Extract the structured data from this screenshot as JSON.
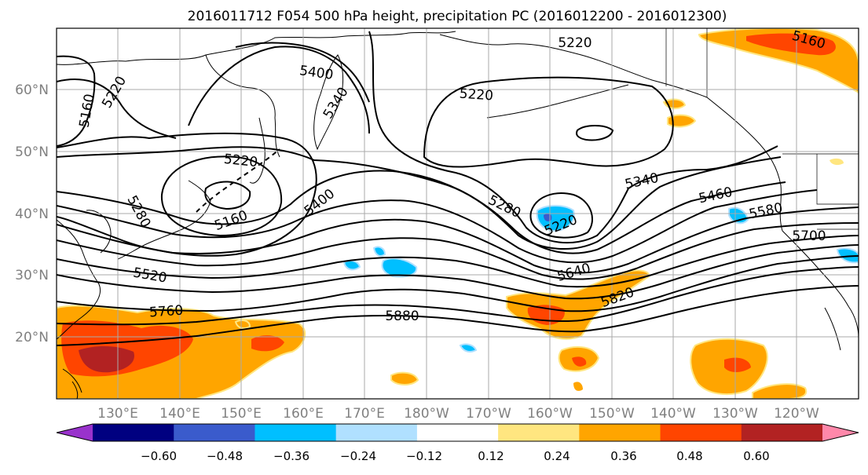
{
  "title": "2016011712 F054 500 hPa height, precipitation PC (2016012200 - 2016012300)",
  "axes": {
    "lat_labels": [
      "20°N",
      "30°N",
      "40°N",
      "50°N",
      "60°N"
    ],
    "lon_labels": [
      "130°E",
      "140°E",
      "150°E",
      "160°E",
      "170°E",
      "180°W",
      "170°W",
      "160°W",
      "150°W",
      "140°W",
      "130°W",
      "120°W"
    ]
  },
  "contour_labels": [
    "5160",
    "5220",
    "5400",
    "5340",
    "5220",
    "5220",
    "5160",
    "5220",
    "5160",
    "5280",
    "5520",
    "5760",
    "5400",
    "5280",
    "5220",
    "5340",
    "5460",
    "5580",
    "5700",
    "5640",
    "5820",
    "5880"
  ],
  "colorbar": {
    "tick_labels": [
      "−0.60",
      "−0.48",
      "−0.36",
      "−0.24",
      "−0.12",
      "0.12",
      "0.24",
      "0.36",
      "0.48",
      "0.60"
    ],
    "colors": [
      "#9932cc",
      "#000080",
      "#3a5bcc",
      "#00bfff",
      "#b0e0ff",
      "#ffffff",
      "#ffe680",
      "#ffa500",
      "#ff4500",
      "#b22222",
      "#ff88aa"
    ]
  },
  "colors": {
    "frame": "#000000",
    "grid": "#aaaaaa",
    "tick_text": "#808080"
  }
}
